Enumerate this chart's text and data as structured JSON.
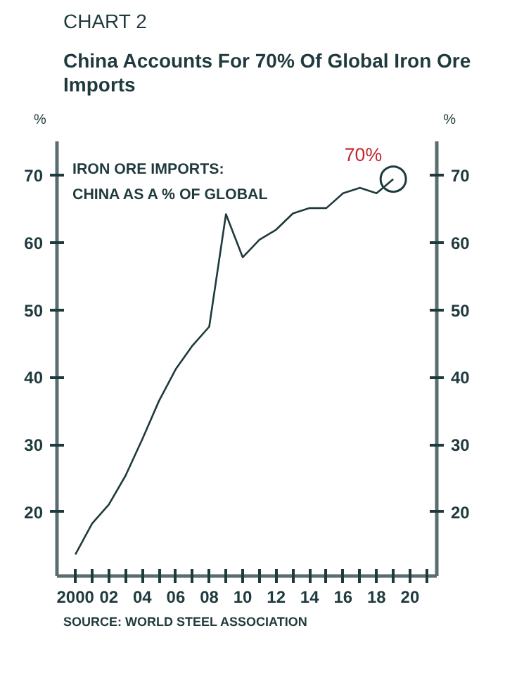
{
  "chart_data": {
    "type": "line",
    "subtitle": "CHART 2",
    "title": "China Accounts For 70% Of Global Iron Ore Imports",
    "ylabel": "%",
    "y2label": "%",
    "x": [
      2000,
      2001,
      2002,
      2003,
      2004,
      2005,
      2006,
      2007,
      2008,
      2009,
      2010,
      2011,
      2012,
      2013,
      2014,
      2015,
      2016,
      2017,
      2018,
      2019
    ],
    "series": [
      {
        "color": "#1f3a3d",
        "values": [
          13.7,
          18.3,
          21.1,
          25.4,
          30.8,
          36.5,
          41.2,
          44.7,
          47.5,
          64.2,
          57.8,
          60.4,
          61.9,
          64.3,
          65.1,
          65.1,
          67.3,
          68.1,
          67.3,
          69.4
        ]
      }
    ],
    "xlim": [
      1998.9,
      2021.6
    ],
    "xticks": [
      {
        "value": 2000,
        "label": "2000"
      },
      {
        "value": 2001,
        "label": null
      },
      {
        "value": 2002,
        "label": "02"
      },
      {
        "value": 2003,
        "label": null
      },
      {
        "value": 2004,
        "label": "04"
      },
      {
        "value": 2005,
        "label": null
      },
      {
        "value": 2006,
        "label": "06"
      },
      {
        "value": 2007,
        "label": null
      },
      {
        "value": 2008,
        "label": "08"
      },
      {
        "value": 2009,
        "label": null
      },
      {
        "value": 2010,
        "label": "10"
      },
      {
        "value": 2011,
        "label": null
      },
      {
        "value": 2012,
        "label": "12"
      },
      {
        "value": 2013,
        "label": null
      },
      {
        "value": 2014,
        "label": "14"
      },
      {
        "value": 2015,
        "label": null
      },
      {
        "value": 2016,
        "label": "16"
      },
      {
        "value": 2017,
        "label": null
      },
      {
        "value": 2018,
        "label": "18"
      },
      {
        "value": 2019,
        "label": null
      },
      {
        "value": 2020,
        "label": "20"
      },
      {
        "value": 2021,
        "label": null
      }
    ],
    "ylim": [
      10.5,
      75
    ],
    "yticks": [
      20,
      30,
      40,
      50,
      60,
      70
    ],
    "y2lim": [
      10.5,
      75
    ],
    "y2ticks": [
      20,
      30,
      40,
      50,
      60,
      70
    ],
    "annotations": [
      "IRON ORE IMPORTS:\nCHINA AS A % OF GLOBAL",
      {
        "text": "70%",
        "x": 2019,
        "y": 69.4
      },
      "SOURCE: WORLD STEEL ASSOCIATION"
    ],
    "grid": false,
    "marker": "none",
    "line_style": "solid"
  }
}
